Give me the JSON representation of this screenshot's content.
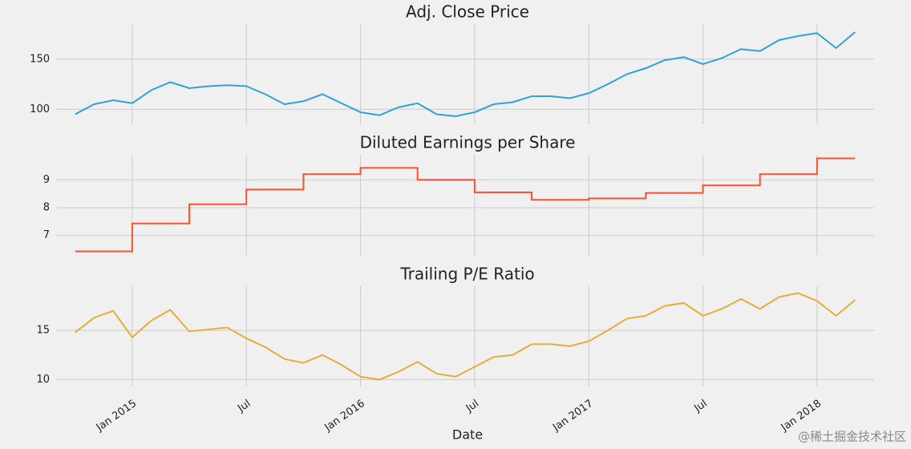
{
  "chart_data": [
    {
      "type": "line",
      "title": "Adj. Close Price",
      "color": "#30a2da",
      "grid": true,
      "x": [
        "2014-10",
        "2014-11",
        "2014-12",
        "2015-01",
        "2015-02",
        "2015-03",
        "2015-04",
        "2015-05",
        "2015-06",
        "2015-07",
        "2015-08",
        "2015-09",
        "2015-10",
        "2015-11",
        "2015-12",
        "2016-01",
        "2016-02",
        "2016-03",
        "2016-04",
        "2016-05",
        "2016-06",
        "2016-07",
        "2016-08",
        "2016-09",
        "2016-10",
        "2016-11",
        "2016-12",
        "2017-01",
        "2017-02",
        "2017-03",
        "2017-04",
        "2017-05",
        "2017-06",
        "2017-07",
        "2017-08",
        "2017-09",
        "2017-10",
        "2017-11",
        "2017-12",
        "2018-01",
        "2018-02",
        "2018-03"
      ],
      "values": [
        95,
        105,
        109,
        106,
        119,
        127,
        121,
        123,
        124,
        123,
        115,
        105,
        108,
        115,
        106,
        97,
        94,
        102,
        106,
        95,
        93,
        97,
        105,
        107,
        113,
        113,
        111,
        116,
        125,
        135,
        141,
        149,
        152,
        145,
        151,
        160,
        158,
        169,
        173,
        176,
        161,
        177
      ],
      "xlim": [
        "2014-09",
        "2018-04"
      ],
      "xticks": [
        "2015-01",
        "2015-07",
        "2016-01",
        "2016-07",
        "2017-01",
        "2017-07",
        "2018-01"
      ],
      "ylim": [
        85,
        185
      ],
      "yticks": [
        100,
        150
      ]
    },
    {
      "type": "step",
      "title": "Diluted Earnings per Share",
      "color": "#fc4f30",
      "grid": true,
      "x": [
        "2014-10",
        "2014-11",
        "2014-12",
        "2015-01",
        "2015-02",
        "2015-03",
        "2015-04",
        "2015-05",
        "2015-06",
        "2015-07",
        "2015-08",
        "2015-09",
        "2015-10",
        "2015-11",
        "2015-12",
        "2016-01",
        "2016-02",
        "2016-03",
        "2016-04",
        "2016-05",
        "2016-06",
        "2016-07",
        "2016-08",
        "2016-09",
        "2016-10",
        "2016-11",
        "2016-12",
        "2017-01",
        "2017-02",
        "2017-03",
        "2017-04",
        "2017-05",
        "2017-06",
        "2017-07",
        "2017-08",
        "2017-09",
        "2017-10",
        "2017-11",
        "2017-12",
        "2018-01",
        "2018-02",
        "2018-03"
      ],
      "values": [
        6.43,
        6.43,
        6.43,
        7.43,
        7.43,
        7.43,
        8.12,
        8.12,
        8.12,
        8.65,
        8.65,
        8.65,
        9.2,
        9.2,
        9.2,
        9.43,
        9.43,
        9.43,
        9.0,
        9.0,
        9.0,
        8.55,
        8.55,
        8.55,
        8.28,
        8.28,
        8.28,
        8.33,
        8.33,
        8.33,
        8.53,
        8.53,
        8.53,
        8.8,
        8.8,
        8.8,
        9.2,
        9.2,
        9.2,
        9.77,
        9.77,
        9.77
      ],
      "xlim": [
        "2014-09",
        "2018-04"
      ],
      "xticks": [
        "2015-01",
        "2015-07",
        "2016-01",
        "2016-07",
        "2017-01",
        "2017-07",
        "2018-01"
      ],
      "ylim": [
        6.3,
        9.9
      ],
      "yticks": [
        7,
        8,
        9
      ]
    },
    {
      "type": "line",
      "title": "Trailing P/E Ratio",
      "color": "#e5ae38",
      "grid": true,
      "xlabel": "Date",
      "x": [
        "2014-10",
        "2014-11",
        "2014-12",
        "2015-01",
        "2015-02",
        "2015-03",
        "2015-04",
        "2015-05",
        "2015-06",
        "2015-07",
        "2015-08",
        "2015-09",
        "2015-10",
        "2015-11",
        "2015-12",
        "2016-01",
        "2016-02",
        "2016-03",
        "2016-04",
        "2016-05",
        "2016-06",
        "2016-07",
        "2016-08",
        "2016-09",
        "2016-10",
        "2016-11",
        "2016-12",
        "2017-01",
        "2017-02",
        "2017-03",
        "2017-04",
        "2017-05",
        "2017-06",
        "2017-07",
        "2017-08",
        "2017-09",
        "2017-10",
        "2017-11",
        "2017-12",
        "2018-01",
        "2018-02",
        "2018-03"
      ],
      "values": [
        14.8,
        16.3,
        17.0,
        14.3,
        16.0,
        17.1,
        14.9,
        15.1,
        15.3,
        14.2,
        13.3,
        12.1,
        11.7,
        12.5,
        11.5,
        10.3,
        10.0,
        10.8,
        11.8,
        10.6,
        10.3,
        11.3,
        12.3,
        12.5,
        13.6,
        13.6,
        13.4,
        13.9,
        15.0,
        16.2,
        16.5,
        17.5,
        17.8,
        16.5,
        17.2,
        18.2,
        17.2,
        18.4,
        18.8,
        18.0,
        16.5,
        18.1
      ],
      "xlim": [
        "2014-09",
        "2018-04"
      ],
      "xticks": [
        {
          "value": "2015-01",
          "label": "Jan 2015"
        },
        {
          "value": "2015-07",
          "label": "Jul"
        },
        {
          "value": "2016-01",
          "label": "Jan 2016"
        },
        {
          "value": "2016-07",
          "label": "Jul"
        },
        {
          "value": "2017-01",
          "label": "Jan 2017"
        },
        {
          "value": "2017-07",
          "label": "Jul"
        },
        {
          "value": "2018-01",
          "label": "Jan 2018"
        }
      ],
      "ylim": [
        9.3,
        19.5
      ],
      "yticks": [
        10,
        15
      ]
    }
  ],
  "watermark": "@稀土掘金技术社区"
}
